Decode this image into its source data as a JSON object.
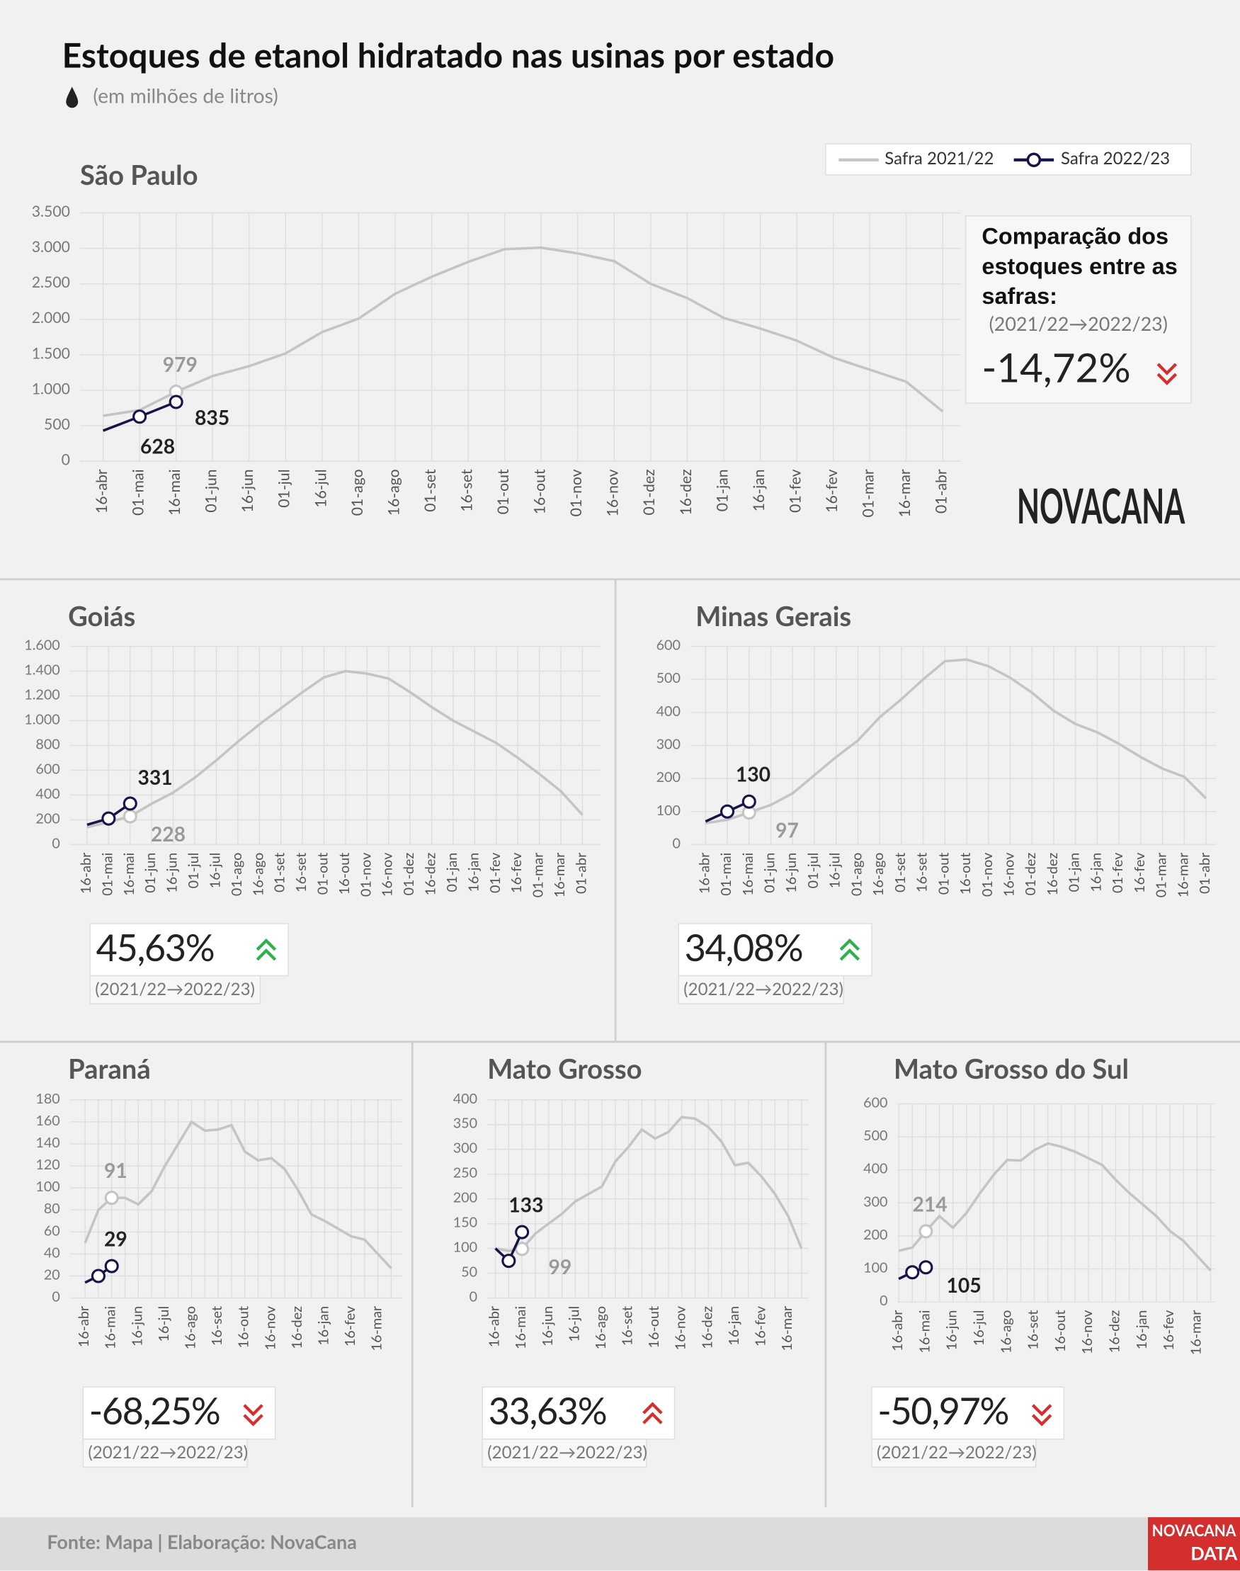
{
  "header": {
    "title": "Estoques de etanol hidratado nas usinas por estado",
    "subtitle": "(em milhões de litros)"
  },
  "brand": "NOVACANA",
  "footer": {
    "source": "Fonte: Mapa | Elaboração: NovaCana",
    "logo_top": "NOVACANA",
    "logo_bottom": "DATA"
  },
  "chart_data": [
    {
      "type": "line",
      "title": "São Paulo",
      "categories": [
        "16-abr",
        "01-mai",
        "16-mai",
        "01-jun",
        "16-jun",
        "01-jul",
        "16-jul",
        "01-ago",
        "16-ago",
        "01-set",
        "16-set",
        "01-out",
        "16-out",
        "01-nov",
        "16-nov",
        "01-dez",
        "16-dez",
        "01-jan",
        "16-jan",
        "01-fev",
        "16-fev",
        "01-mar",
        "16-mar",
        "01-abr"
      ],
      "series": [
        {
          "name": "Safra 2021/22",
          "color": "#c4c4c4",
          "values": [
            640,
            720,
            979,
            1200,
            1340,
            1520,
            1820,
            2010,
            2360,
            2600,
            2810,
            2990,
            3010,
            2930,
            2820,
            2500,
            2300,
            2020,
            1870,
            1700,
            1460,
            1290,
            1120,
            700
          ],
          "labeled_points": [
            {
              "index": 2,
              "position": "above"
            }
          ]
        },
        {
          "name": "Safra 2022/23",
          "color": "#15154a",
          "markers": true,
          "values": [
            430,
            628,
            835,
            null,
            null,
            null,
            null,
            null,
            null,
            null,
            null,
            null,
            null,
            null,
            null,
            null,
            null,
            null,
            null,
            null,
            null,
            null,
            null,
            null
          ],
          "labeled_points": [
            {
              "index": 1,
              "position": "below"
            },
            {
              "index": 2,
              "position": "right"
            }
          ]
        }
      ],
      "ylim": [
        0,
        3500
      ],
      "yticks": [
        0,
        500,
        {
          "value": 1000,
          "label": "1.000"
        },
        {
          "value": 1500,
          "label": "1.500"
        },
        {
          "value": 2000,
          "label": "2.000"
        },
        {
          "value": 2500,
          "label": "2.500"
        },
        {
          "value": 3000,
          "label": "3.000"
        },
        {
          "value": 3500,
          "label": "3.500"
        }
      ],
      "grid": true,
      "comparison": {
        "caption": "Comparação dos estoques entre as safras:",
        "period": "(2021/22→2022/23)",
        "change": "-14,72%",
        "trend": "down",
        "arrow_color": "#d32f2f"
      }
    },
    {
      "type": "line",
      "title": "Goiás",
      "categories": [
        "16-abr",
        "01-mai",
        "16-mai",
        "01-jun",
        "16-jun",
        "01-jul",
        "16-jul",
        "01-ago",
        "16-ago",
        "01-set",
        "16-set",
        "01-out",
        "16-out",
        "01-nov",
        "16-nov",
        "01-dez",
        "16-dez",
        "01-jan",
        "16-jan",
        "01-fev",
        "16-fev",
        "01-mar",
        "16-mar",
        "01-abr"
      ],
      "series": [
        {
          "name": "Safra 2021/22",
          "color": "#c4c4c4",
          "values": [
            140,
            180,
            228,
            330,
            420,
            540,
            680,
            830,
            970,
            1100,
            1230,
            1350,
            1400,
            1380,
            1340,
            1230,
            1110,
            1000,
            910,
            820,
            700,
            570,
            430,
            240
          ],
          "labeled_points": [
            {
              "index": 2,
              "position": "below-right"
            }
          ]
        },
        {
          "name": "Safra 2022/23",
          "color": "#15154a",
          "markers": true,
          "values": [
            160,
            210,
            331,
            null,
            null,
            null,
            null,
            null,
            null,
            null,
            null,
            null,
            null,
            null,
            null,
            null,
            null,
            null,
            null,
            null,
            null,
            null,
            null,
            null
          ],
          "labeled_points": [
            {
              "index": 2,
              "position": "above-right"
            }
          ]
        }
      ],
      "ylim": [
        0,
        1600
      ],
      "yticks": [
        0,
        200,
        400,
        600,
        800,
        {
          "value": 1000,
          "label": "1.000"
        },
        {
          "value": 1200,
          "label": "1.200"
        },
        {
          "value": 1400,
          "label": "1.400"
        },
        {
          "value": 1600,
          "label": "1.600"
        }
      ],
      "grid": true,
      "comparison": {
        "period": "(2021/22→2022/23)",
        "change": "45,63%",
        "trend": "up",
        "arrow_color": "#2eb04a"
      }
    },
    {
      "type": "line",
      "title": "Minas Gerais",
      "categories": [
        "16-abr",
        "01-mai",
        "16-mai",
        "01-jun",
        "16-jun",
        "01-jul",
        "16-jul",
        "01-ago",
        "16-ago",
        "01-set",
        "16-set",
        "01-out",
        "16-out",
        "01-nov",
        "16-nov",
        "01-dez",
        "16-dez",
        "01-jan",
        "16-jan",
        "01-fev",
        "16-fev",
        "01-mar",
        "16-mar",
        "01-abr"
      ],
      "series": [
        {
          "name": "Safra 2021/22",
          "color": "#c4c4c4",
          "values": [
            65,
            75,
            97,
            120,
            155,
            210,
            265,
            315,
            385,
            440,
            500,
            555,
            560,
            540,
            505,
            460,
            405,
            365,
            340,
            305,
            265,
            230,
            205,
            140
          ],
          "labeled_points": [
            {
              "index": 2,
              "position": "below-right"
            }
          ]
        },
        {
          "name": "Safra 2022/23",
          "color": "#15154a",
          "markers": true,
          "values": [
            70,
            100,
            130,
            null,
            null,
            null,
            null,
            null,
            null,
            null,
            null,
            null,
            null,
            null,
            null,
            null,
            null,
            null,
            null,
            null,
            null,
            null,
            null,
            null
          ],
          "labeled_points": [
            {
              "index": 2,
              "position": "above"
            }
          ]
        }
      ],
      "ylim": [
        0,
        600
      ],
      "yticks": [
        0,
        100,
        200,
        300,
        400,
        500,
        600
      ],
      "grid": true,
      "comparison": {
        "period": "(2021/22→2022/23)",
        "change": "34,08%",
        "trend": "up",
        "arrow_color": "#2eb04a"
      }
    },
    {
      "type": "line",
      "title": "Paraná",
      "categories": [
        "16-abr",
        null,
        "16-mai",
        null,
        "16-jun",
        null,
        "16-jul",
        null,
        "16-ago",
        null,
        "16-set",
        null,
        "16-out",
        null,
        "16-nov",
        null,
        "16-dez",
        null,
        "16-jan",
        null,
        "16-fev",
        null,
        "16-mar",
        null
      ],
      "series": [
        {
          "name": "Safra 2021/22",
          "color": "#c4c4c4",
          "values": [
            50,
            80,
            91,
            91,
            85,
            97,
            120,
            140,
            160,
            152,
            153,
            157,
            133,
            125,
            127,
            117,
            98,
            76,
            70,
            63,
            56,
            53,
            40,
            27
          ],
          "labeled_points": [
            {
              "index": 2,
              "position": "above"
            }
          ]
        },
        {
          "name": "Safra 2022/23",
          "color": "#15154a",
          "markers": true,
          "values": [
            14,
            20,
            29,
            null,
            null,
            null,
            null,
            null,
            null,
            null,
            null,
            null,
            null,
            null,
            null,
            null,
            null,
            null,
            null,
            null,
            null,
            null,
            null,
            null
          ],
          "labeled_points": [
            {
              "index": 2,
              "position": "above"
            }
          ]
        }
      ],
      "ylim": [
        0,
        180
      ],
      "yticks": [
        0,
        20,
        40,
        60,
        80,
        100,
        120,
        140,
        160,
        180
      ],
      "grid": true,
      "comparison": {
        "period": "(2021/22→2022/23)",
        "change": "-68,25%",
        "trend": "down",
        "arrow_color": "#d32f2f"
      }
    },
    {
      "type": "line",
      "title": "Mato Grosso",
      "categories": [
        "16-abr",
        null,
        "16-mai",
        null,
        "16-jun",
        null,
        "16-jul",
        null,
        "16-ago",
        null,
        "16-set",
        null,
        "16-out",
        null,
        "16-nov",
        null,
        "16-dez",
        null,
        "16-jan",
        null,
        "16-fev",
        null,
        "16-mar",
        null
      ],
      "series": [
        {
          "name": "Safra 2021/22",
          "color": "#c4c4c4",
          "values": [
            100,
            95,
            99,
            130,
            150,
            170,
            195,
            210,
            225,
            275,
            305,
            340,
            322,
            335,
            365,
            362,
            345,
            315,
            268,
            273,
            245,
            210,
            165,
            100
          ],
          "labeled_points": [
            {
              "index": 2,
              "position": "below-right"
            }
          ]
        },
        {
          "name": "Safra 2022/23",
          "color": "#15154a",
          "markers": true,
          "values": [
            100,
            75,
            133,
            null,
            null,
            null,
            null,
            null,
            null,
            null,
            null,
            null,
            null,
            null,
            null,
            null,
            null,
            null,
            null,
            null,
            null,
            null,
            null,
            null
          ],
          "labeled_points": [
            {
              "index": 2,
              "position": "above"
            }
          ]
        }
      ],
      "ylim": [
        0,
        400
      ],
      "yticks": [
        0,
        50,
        100,
        150,
        200,
        250,
        300,
        350,
        400
      ],
      "grid": true,
      "comparison": {
        "period": "(2021/22→2022/23)",
        "change": "33,63%",
        "trend": "up",
        "arrow_color": "#d32f2f"
      }
    },
    {
      "type": "line",
      "title": "Mato Grosso do Sul",
      "categories": [
        "16-abr",
        null,
        "16-mai",
        null,
        "16-jun",
        null,
        "16-jul",
        null,
        "16-ago",
        null,
        "16-set",
        null,
        "16-out",
        null,
        "16-nov",
        null,
        "16-dez",
        null,
        "16-jan",
        null,
        "16-fev",
        null,
        "16-mar",
        null
      ],
      "series": [
        {
          "name": "Safra 2021/22",
          "color": "#c4c4c4",
          "values": [
            155,
            165,
            214,
            260,
            225,
            270,
            330,
            385,
            430,
            428,
            460,
            480,
            470,
            455,
            435,
            415,
            370,
            330,
            295,
            260,
            215,
            185,
            140,
            95
          ],
          "labeled_points": [
            {
              "index": 2,
              "position": "above"
            }
          ]
        },
        {
          "name": "Safra 2022/23",
          "color": "#15154a",
          "markers": true,
          "values": [
            70,
            90,
            105,
            null,
            null,
            null,
            null,
            null,
            null,
            null,
            null,
            null,
            null,
            null,
            null,
            null,
            null,
            null,
            null,
            null,
            null,
            null,
            null,
            null
          ],
          "labeled_points": [
            {
              "index": 2,
              "position": "below-right"
            }
          ]
        }
      ],
      "ylim": [
        0,
        600
      ],
      "yticks": [
        0,
        100,
        200,
        300,
        400,
        500,
        600
      ],
      "grid": true,
      "comparison": {
        "period": "(2021/22→2022/23)",
        "change": "-50,97%",
        "trend": "down",
        "arrow_color": "#d32f2f"
      }
    }
  ]
}
